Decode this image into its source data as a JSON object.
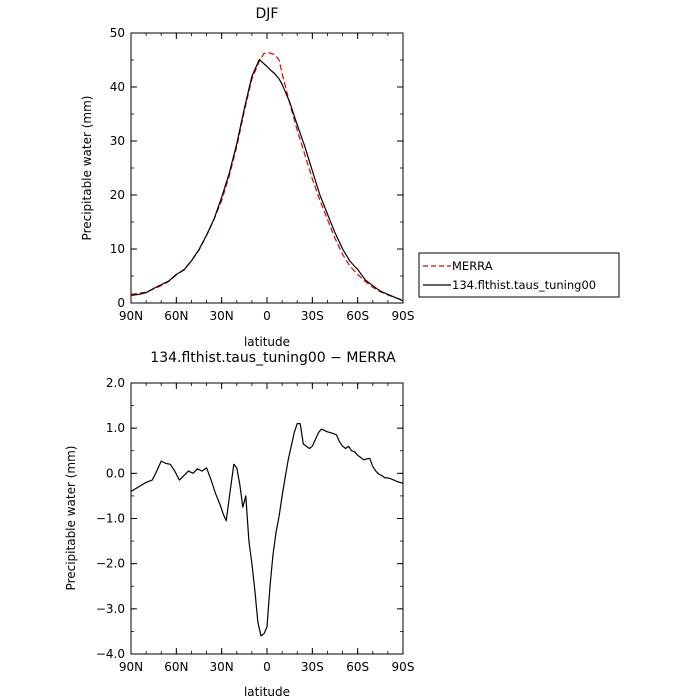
{
  "chart_data": [
    {
      "type": "line",
      "title": "DJF",
      "xlabel": "latitude",
      "ylabel": "Precipitable water (mm)",
      "xlim": [
        90,
        -90
      ],
      "ylim": [
        0,
        50
      ],
      "x_tick_values": [
        90,
        60,
        30,
        0,
        -30,
        -60,
        -90
      ],
      "x_tick_labels": [
        "90N",
        "60N",
        "30N",
        "0",
        "30S",
        "60S",
        "90S"
      ],
      "y_tick_values": [
        0,
        10,
        20,
        30,
        40,
        50
      ],
      "y_tick_labels": [
        "0",
        "10",
        "20",
        "30",
        "40",
        "50"
      ],
      "legend_position": "right",
      "series": [
        {
          "name": "MERRA",
          "color": "#e00000",
          "style": "dashed",
          "x": [
            90,
            85,
            80,
            75,
            70,
            65,
            60,
            55,
            50,
            45,
            40,
            35,
            30,
            25,
            20,
            15,
            10,
            5,
            2,
            0,
            -2,
            -5,
            -8,
            -10,
            -15,
            -20,
            -25,
            -30,
            -35,
            -40,
            -45,
            -50,
            -55,
            -60,
            -65,
            -70,
            -75,
            -80,
            -85,
            -90
          ],
          "y": [
            1.6,
            1.8,
            2.0,
            2.6,
            3.2,
            4.0,
            5.2,
            6.2,
            7.8,
            9.8,
            12.5,
            15.5,
            19.0,
            23.5,
            29.0,
            35.5,
            41.5,
            44.8,
            46.2,
            46.3,
            46.3,
            46.0,
            45.0,
            42.5,
            37.0,
            32.0,
            27.5,
            23.0,
            19.0,
            15.5,
            12.0,
            9.0,
            6.8,
            5.3,
            4.0,
            2.9,
            2.1,
            1.5,
            1.0,
            0.5
          ]
        },
        {
          "name": "134.flthist.taus_tuning00",
          "color": "#000000",
          "style": "solid",
          "x": [
            90,
            85,
            80,
            75,
            70,
            65,
            60,
            55,
            50,
            45,
            40,
            35,
            30,
            25,
            20,
            15,
            10,
            5,
            2,
            0,
            -2,
            -5,
            -8,
            -10,
            -15,
            -20,
            -25,
            -30,
            -35,
            -40,
            -45,
            -50,
            -55,
            -60,
            -65,
            -70,
            -75,
            -80,
            -85,
            -90
          ],
          "y": [
            1.4,
            1.6,
            1.9,
            2.7,
            3.4,
            4.1,
            5.3,
            6.1,
            7.8,
            9.9,
            12.6,
            15.6,
            19.6,
            24.0,
            29.5,
            36.0,
            42.0,
            45.1,
            44.3,
            43.8,
            43.2,
            42.5,
            41.5,
            40.5,
            37.2,
            33.0,
            29.0,
            24.5,
            20.0,
            16.5,
            13.0,
            10.0,
            7.7,
            6.2,
            4.3,
            3.2,
            2.2,
            1.6,
            1.0,
            0.4
          ]
        }
      ]
    },
    {
      "type": "line",
      "title": "134.flthist.taus_tuning00 − MERRA",
      "xlabel": "latitude",
      "ylabel": "Precipitable water (mm)",
      "xlim": [
        90,
        -90
      ],
      "ylim": [
        -4.0,
        2.0
      ],
      "x_tick_values": [
        90,
        60,
        30,
        0,
        -30,
        -60,
        -90
      ],
      "x_tick_labels": [
        "90N",
        "60N",
        "30N",
        "0",
        "30S",
        "60S",
        "90S"
      ],
      "y_tick_values": [
        2.0,
        1.0,
        0.0,
        -1.0,
        -2.0,
        -3.0,
        -4.0
      ],
      "y_tick_labels": [
        "2.0",
        "1.0",
        "0.0",
        "−1.0",
        "−2.0",
        "−3.0",
        "−4.0"
      ],
      "series": [
        {
          "color": "#000000",
          "style": "solid",
          "x": [
            90,
            85,
            80,
            76,
            73,
            70,
            67,
            64,
            61,
            58,
            55,
            52,
            49,
            46,
            43,
            40,
            37,
            34,
            31,
            29,
            27,
            25,
            22,
            20,
            18,
            16,
            14,
            12,
            10,
            8,
            6,
            4,
            2,
            0,
            -2,
            -4,
            -6,
            -8,
            -10,
            -12,
            -14,
            -16,
            -18,
            -20,
            -22,
            -24,
            -26,
            -28,
            -30,
            -32,
            -34,
            -36,
            -38,
            -40,
            -42,
            -44,
            -46,
            -48,
            -50,
            -52,
            -54,
            -56,
            -58,
            -60,
            -62,
            -64,
            -66,
            -68,
            -70,
            -72,
            -74,
            -76,
            -78,
            -80,
            -82,
            -84,
            -86,
            -88,
            -90
          ],
          "y": [
            -0.4,
            -0.3,
            -0.2,
            -0.15,
            0.05,
            0.27,
            0.22,
            0.2,
            0.05,
            -0.15,
            -0.05,
            0.05,
            0.0,
            0.1,
            0.05,
            0.12,
            -0.15,
            -0.45,
            -0.7,
            -0.9,
            -1.05,
            -0.55,
            0.2,
            0.12,
            -0.25,
            -0.75,
            -0.5,
            -1.5,
            -2.0,
            -2.6,
            -3.3,
            -3.6,
            -3.55,
            -3.4,
            -2.5,
            -1.8,
            -1.3,
            -0.95,
            -0.5,
            -0.1,
            0.3,
            0.6,
            0.9,
            1.1,
            1.1,
            0.65,
            0.6,
            0.55,
            0.6,
            0.75,
            0.9,
            0.98,
            0.95,
            0.92,
            0.9,
            0.88,
            0.85,
            0.7,
            0.6,
            0.55,
            0.6,
            0.5,
            0.48,
            0.4,
            0.35,
            0.3,
            0.32,
            0.33,
            0.15,
            0.05,
            -0.02,
            -0.05,
            -0.1,
            -0.1,
            -0.12,
            -0.15,
            -0.18,
            -0.2,
            -0.22
          ]
        }
      ]
    }
  ]
}
